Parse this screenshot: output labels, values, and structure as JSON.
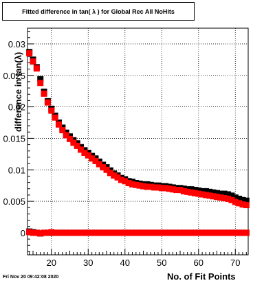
{
  "chart_data": {
    "type": "scatter",
    "title": "Fitted difference in tan( λ ) for Global Rec All NoHits",
    "xlabel": "No. of Fit Points",
    "ylabel": "difference in tan(λ)",
    "xlim": [
      13.5,
      73.5
    ],
    "ylim": [
      -0.0035,
      0.0325
    ],
    "x_ticks": [
      "20",
      "30",
      "40",
      "50",
      "60",
      "70"
    ],
    "y_ticks": [
      "0",
      "0.005",
      "0.01",
      "0.015",
      "0.02",
      "0.025",
      "0.03"
    ],
    "grid": true,
    "series": [
      {
        "color": "#000000",
        "x": [
          14,
          15,
          16,
          17,
          18,
          19,
          20,
          21,
          22,
          23,
          24,
          25,
          26,
          27,
          28,
          29,
          30,
          31,
          32,
          33,
          34,
          35,
          36,
          37,
          38,
          39,
          40,
          41,
          42,
          43,
          44,
          45,
          46,
          47,
          48,
          49,
          50,
          51,
          52,
          53,
          54,
          55,
          56,
          57,
          58,
          59,
          60,
          61,
          62,
          63,
          64,
          65,
          66,
          67,
          68,
          69,
          70,
          71,
          72,
          73
        ],
        "values": [
          0.0287,
          0.0275,
          0.0263,
          0.0244,
          0.0224,
          0.0209,
          0.0197,
          0.0186,
          0.0175,
          0.0167,
          0.0159,
          0.0153,
          0.0147,
          0.0142,
          0.0136,
          0.0131,
          0.0127,
          0.0122,
          0.0118,
          0.0113,
          0.0108,
          0.0104,
          0.0099,
          0.0094,
          0.0091,
          0.0087,
          0.0085,
          0.0082,
          0.0081,
          0.0079,
          0.0078,
          0.0077,
          0.0077,
          0.0076,
          0.0075,
          0.0075,
          0.0074,
          0.0074,
          0.0073,
          0.0072,
          0.0071,
          0.0071,
          0.007,
          0.0069,
          0.0069,
          0.0068,
          0.0067,
          0.0066,
          0.0066,
          0.0065,
          0.0064,
          0.0063,
          0.0062,
          0.0062,
          0.0061,
          0.0059,
          0.0056,
          0.0054,
          0.0052,
          0.0051
        ]
      },
      {
        "color": "#ff0000",
        "x": [
          14,
          15,
          16,
          17,
          18,
          19,
          20,
          21,
          22,
          23,
          24,
          25,
          26,
          27,
          28,
          29,
          30,
          31,
          32,
          33,
          34,
          35,
          36,
          37,
          38,
          39,
          40,
          41,
          42,
          43,
          44,
          45,
          46,
          47,
          48,
          49,
          50,
          51,
          52,
          53,
          54,
          55,
          56,
          57,
          58,
          59,
          60,
          61,
          62,
          63,
          64,
          65,
          66,
          67,
          68,
          69,
          70,
          71,
          72,
          73
        ],
        "values": [
          0.0285,
          0.0272,
          0.0261,
          0.0238,
          0.0221,
          0.0207,
          0.0194,
          0.0183,
          0.0172,
          0.0163,
          0.0155,
          0.0149,
          0.0143,
          0.0138,
          0.0132,
          0.0127,
          0.0123,
          0.0118,
          0.0114,
          0.0109,
          0.0104,
          0.01,
          0.0095,
          0.0091,
          0.0088,
          0.0084,
          0.0082,
          0.0079,
          0.0077,
          0.0076,
          0.0075,
          0.0074,
          0.0073,
          0.0073,
          0.0072,
          0.0072,
          0.0071,
          0.0071,
          0.007,
          0.0069,
          0.0068,
          0.0068,
          0.0066,
          0.0065,
          0.0064,
          0.0063,
          0.0062,
          0.0061,
          0.006,
          0.0059,
          0.0058,
          0.0057,
          0.0056,
          0.0055,
          0.0054,
          0.0052,
          0.0049,
          0.0047,
          0.0045,
          0.0044
        ]
      },
      {
        "color": "#000000",
        "x": [
          14,
          15,
          16,
          17,
          18,
          19,
          20,
          21,
          22,
          23,
          24,
          25,
          26,
          27,
          28,
          29,
          30,
          31,
          32,
          33,
          34,
          35,
          36,
          37,
          38,
          39,
          40,
          41,
          42,
          43,
          44,
          45,
          46,
          47,
          48,
          49,
          50,
          51,
          52,
          53,
          54,
          55,
          56,
          57,
          58,
          59,
          60,
          61,
          62,
          63,
          64,
          65,
          66,
          67,
          68,
          69,
          70,
          71,
          72,
          73
        ],
        "values": [
          0.0002,
          0.0001,
          0.0,
          -0.0001,
          0.0,
          0.0,
          0.0,
          0.0,
          0.0,
          0.0,
          0.0,
          0.0,
          0.0,
          0.0,
          0.0,
          0.0,
          0.0,
          0.0,
          0.0,
          0.0,
          0.0,
          0.0,
          0.0,
          0.0,
          0.0,
          0.0,
          0.0,
          0.0,
          0.0,
          0.0,
          0.0,
          0.0,
          0.0,
          0.0,
          0.0,
          0.0,
          0.0,
          0.0,
          0.0,
          0.0,
          0.0,
          0.0,
          0.0,
          0.0,
          0.0,
          0.0,
          0.0,
          0.0,
          0.0,
          0.0,
          0.0,
          0.0,
          0.0,
          0.0,
          0.0,
          0.0,
          0.0,
          0.0,
          0.0,
          0.0
        ]
      },
      {
        "color": "#ff0000",
        "x": [
          14,
          15,
          16,
          17,
          18,
          19,
          20,
          21,
          22,
          23,
          24,
          25,
          26,
          27,
          28,
          29,
          30,
          31,
          32,
          33,
          34,
          35,
          36,
          37,
          38,
          39,
          40,
          41,
          42,
          43,
          44,
          45,
          46,
          47,
          48,
          49,
          50,
          51,
          52,
          53,
          54,
          55,
          56,
          57,
          58,
          59,
          60,
          61,
          62,
          63,
          64,
          65,
          66,
          67,
          68,
          69,
          70,
          71,
          72,
          73
        ],
        "values": [
          0.0001,
          0.0,
          0.0,
          -0.0001,
          0.0,
          0.0,
          0.0001,
          0.0,
          0.0,
          0.0,
          0.0,
          0.0,
          0.0,
          0.0,
          0.0,
          0.0,
          0.0,
          0.0,
          0.0,
          0.0,
          0.0,
          0.0,
          0.0,
          0.0,
          0.0,
          0.0,
          0.0,
          0.0,
          0.0,
          0.0,
          0.0,
          0.0,
          0.0,
          0.0,
          0.0,
          0.0,
          0.0,
          0.0,
          0.0,
          0.0,
          0.0,
          0.0,
          0.0,
          0.0,
          0.0,
          0.0,
          0.0,
          0.0,
          0.0,
          0.0,
          0.0,
          0.0,
          0.0,
          0.0,
          0.0,
          0.0,
          0.0,
          0.0,
          0.0,
          0.0
        ]
      }
    ]
  },
  "footer": {
    "timestamp": "Fri Nov 20 09:42:08 2020"
  }
}
